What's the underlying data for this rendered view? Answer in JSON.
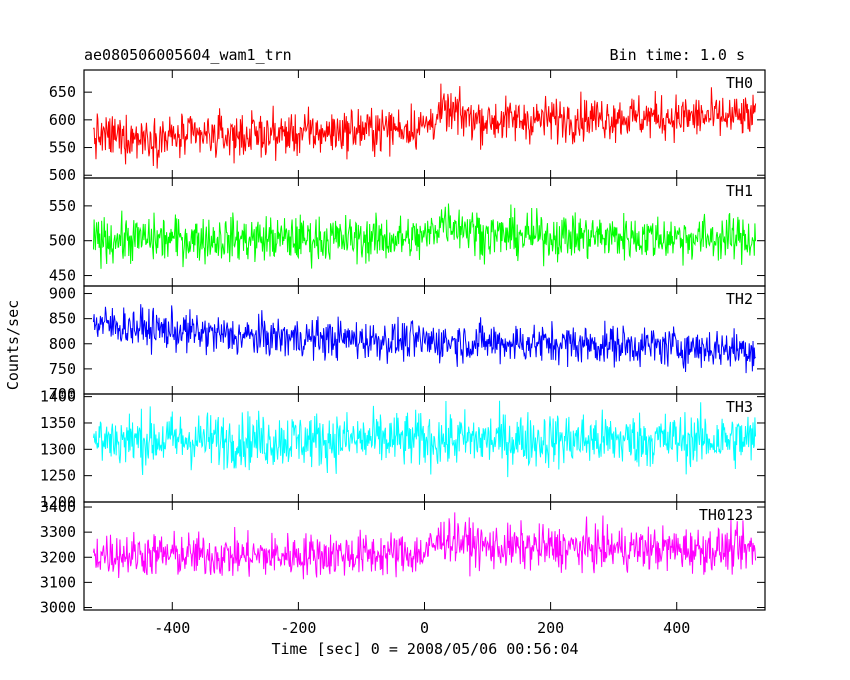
{
  "title": "ae080506005604_wam1_trn",
  "bin_label": "Bin time: 1.0 s",
  "ylabel": "Counts/sec",
  "xlabel": "Time [sec] 0 = 2008/05/06 00:56:04",
  "chart_data": {
    "type": "line",
    "xlim": [
      -540,
      540
    ],
    "x_ticks": [
      -400,
      -200,
      0,
      200,
      400
    ],
    "x_range": [
      -525,
      525
    ],
    "bin_time_s": 1.0,
    "panels": [
      {
        "name": "TH0",
        "color": "#ff0000",
        "ylim": [
          495,
          690
        ],
        "y_ticks": [
          500,
          550,
          600,
          650
        ],
        "trend": [
          [
            -525,
            570
          ],
          [
            -400,
            568
          ],
          [
            -200,
            575
          ],
          [
            0,
            588
          ],
          [
            30,
            615
          ],
          [
            100,
            598
          ],
          [
            300,
            605
          ],
          [
            525,
            605
          ]
        ],
        "noise": 28
      },
      {
        "name": "TH1",
        "color": "#00ff00",
        "ylim": [
          435,
          590
        ],
        "y_ticks": [
          450,
          500,
          550
        ],
        "trend": [
          [
            -525,
            502
          ],
          [
            0,
            503
          ],
          [
            30,
            530
          ],
          [
            100,
            508
          ],
          [
            525,
            503
          ]
        ],
        "noise": 23
      },
      {
        "name": "TH2",
        "color": "#0000ff",
        "ylim": [
          700,
          915
        ],
        "y_ticks": [
          700,
          750,
          800,
          850,
          900
        ],
        "trend": [
          [
            -525,
            840
          ],
          [
            -300,
            815
          ],
          [
            0,
            805
          ],
          [
            300,
            798
          ],
          [
            525,
            788
          ]
        ],
        "noise": 28
      },
      {
        "name": "TH3",
        "color": "#00ffff",
        "ylim": [
          1200,
          1405
        ],
        "y_ticks": [
          1200,
          1250,
          1300,
          1350,
          1400
        ],
        "trend": [
          [
            -525,
            1318
          ],
          [
            0,
            1318
          ],
          [
            525,
            1318
          ]
        ],
        "noise": 37
      },
      {
        "name": "TH0123",
        "color": "#ff00ff",
        "ylim": [
          2990,
          3420
        ],
        "y_ticks": [
          3000,
          3100,
          3200,
          3300,
          3400
        ],
        "trend": [
          [
            -525,
            3215
          ],
          [
            -300,
            3205
          ],
          [
            0,
            3215
          ],
          [
            30,
            3280
          ],
          [
            100,
            3240
          ],
          [
            525,
            3230
          ]
        ],
        "noise": 62
      }
    ]
  }
}
